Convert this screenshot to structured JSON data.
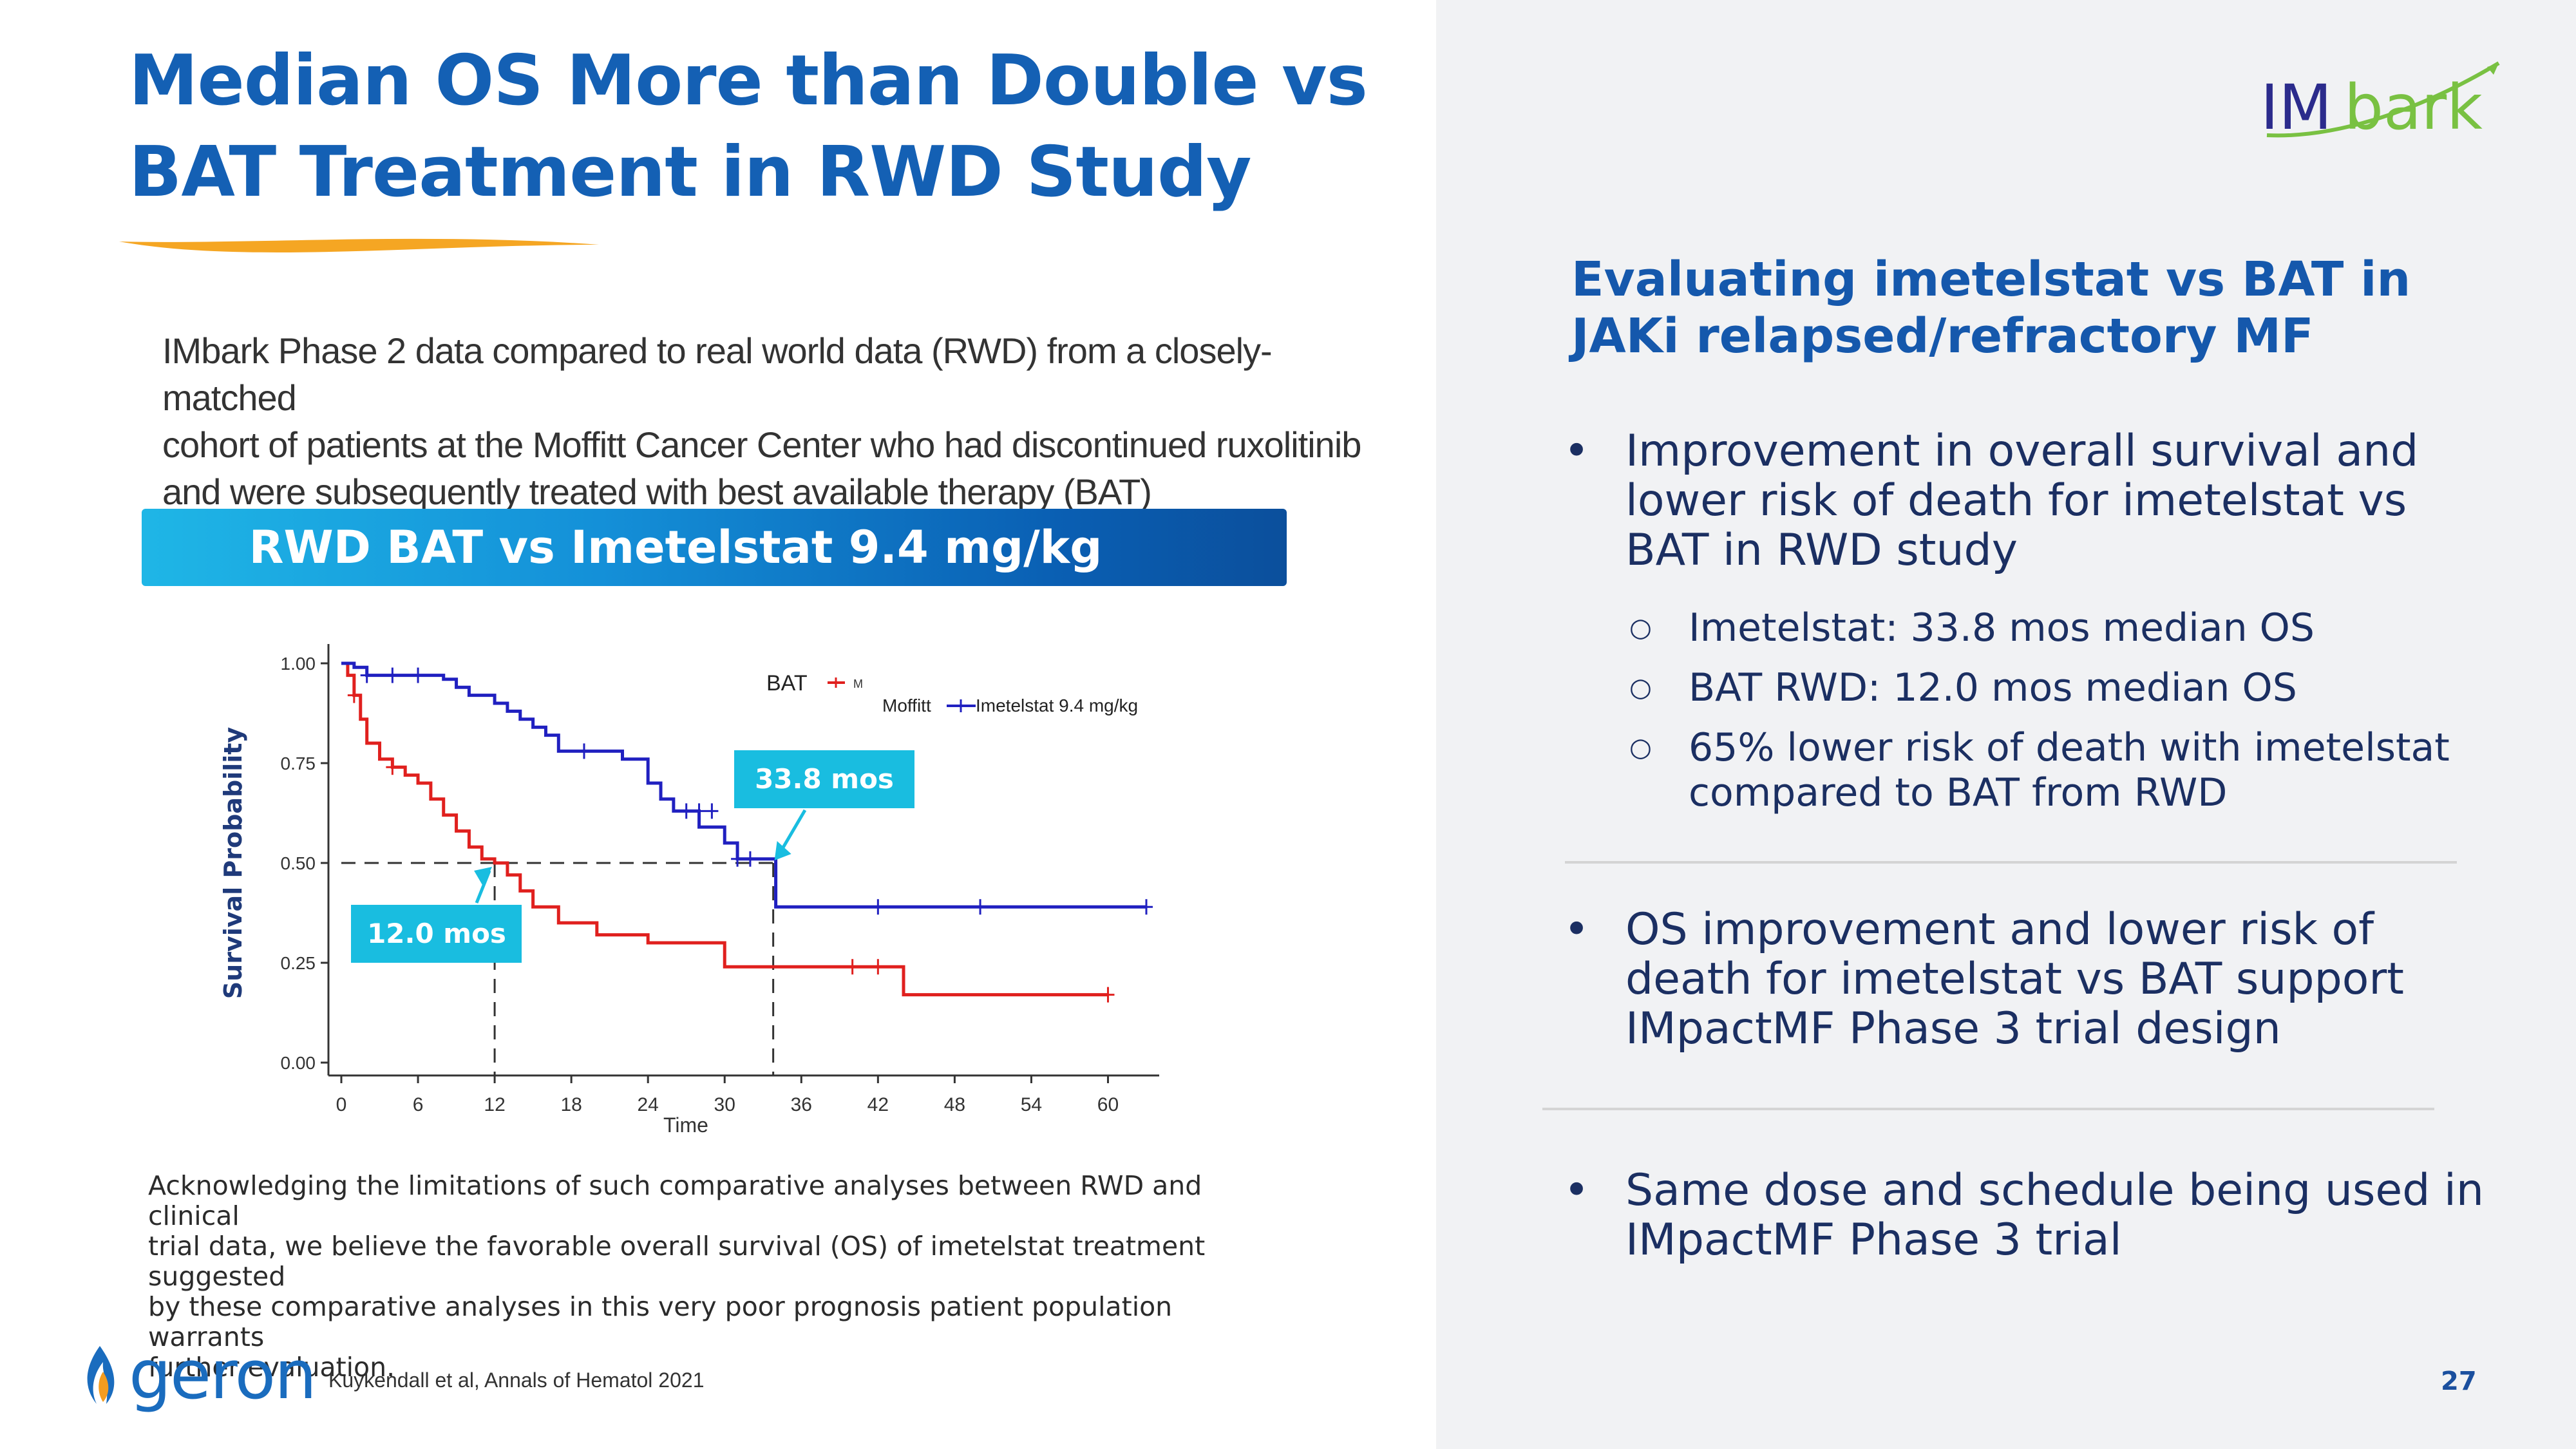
{
  "slide": {
    "title_line1": "Median OS More than Double vs",
    "title_line2": "BAT Treatment in RWD Study",
    "intro_line1": "IMbark Phase 2 data compared to real world data (RWD) from a closely-matched",
    "intro_line2": "cohort of patients at the Moffitt Cancer Center who had discontinued ruxolitinib",
    "intro_line3": "and were subsequently treated with best available therapy (BAT)",
    "banner": "RWD BAT vs Imetelstat 9.4 mg/kg",
    "footnote_line1": "Acknowledging the limitations of such comparative analyses between RWD and clinical",
    "footnote_line2": "trial data, we believe the favorable overall survival (OS) of imetelstat treatment suggested",
    "footnote_line3": "by these comparative analyses in this very poor prognosis patient population warrants",
    "footnote_line4": "further evaluation.",
    "company_logo_text": "geron",
    "citation": "Kuykendall et al, Annals of Hematol 2021",
    "page_number": "27",
    "imbark_logo_part1": "IM",
    "imbark_logo_part2": "bark"
  },
  "right_panel": {
    "heading_line1": "Evaluating imetelstat vs BAT in",
    "heading_line2": "JAKi relapsed/refractory MF",
    "bullet1_line1": "Improvement in overall survival and",
    "bullet1_line2": "lower risk of death for imetelstat vs",
    "bullet1_line3": "BAT in RWD study",
    "sub1": "Imetelstat: 33.8 mos median OS",
    "sub2": "BAT RWD: 12.0 mos median OS",
    "sub3_line1": "65% lower risk of death with imetelstat",
    "sub3_line2": "compared to BAT from RWD",
    "bullet2_line1": "OS improvement and lower risk of",
    "bullet2_line2": "death for imetelstat vs BAT support",
    "bullet2_line3": "IMpactMF Phase 3 trial design",
    "bullet3_line1": "Same dose and schedule being used in",
    "bullet3_line2": "IMpactMF Phase 3 trial",
    "bullet_symbol": "•",
    "sub_symbol": "○"
  },
  "colors": {
    "title_blue": "#1460b4",
    "bat_red": "#e0201e",
    "imetelstat_blue": "#2020c0",
    "callout_cyan": "#19bde0",
    "imbark_green": "#79c142"
  },
  "chart_data": {
    "type": "line",
    "xlabel": "Time",
    "ylabel": "Survival Probability",
    "xlim": [
      0,
      63
    ],
    "ylim": [
      0,
      1
    ],
    "x_ticks": [
      "0",
      "6",
      "12",
      "18",
      "24",
      "30",
      "36",
      "42",
      "48",
      "54",
      "60"
    ],
    "y_ticks": [
      "0.00",
      "0.25",
      "0.50",
      "0.75",
      "1.00"
    ],
    "legend_bat": "BAT",
    "legend_bat_cut": "M",
    "legend_moffitt": "Moffitt",
    "legend_imetelstat": "Imetelstat 9.4 mg/kg",
    "callout_bat": "12.0 mos",
    "callout_imetelstat": "33.8 mos",
    "median_bat": 12.0,
    "median_imetelstat": 33.8,
    "series": [
      {
        "name": "BAT Moffitt",
        "color": "#e0201e",
        "x": [
          0,
          0.5,
          1,
          1.5,
          2,
          3,
          4,
          5,
          6,
          7,
          8,
          9,
          10,
          11,
          12,
          13,
          14,
          15,
          17,
          20,
          24,
          30,
          42,
          44,
          60
        ],
        "y": [
          1.0,
          0.97,
          0.92,
          0.86,
          0.8,
          0.76,
          0.74,
          0.72,
          0.7,
          0.66,
          0.62,
          0.58,
          0.54,
          0.51,
          0.5,
          0.47,
          0.43,
          0.39,
          0.35,
          0.32,
          0.3,
          0.24,
          0.24,
          0.17,
          0.17
        ],
        "censor_x": [
          1,
          4,
          40,
          42,
          60
        ],
        "censor_y": [
          0.92,
          0.74,
          0.24,
          0.24,
          0.17
        ]
      },
      {
        "name": "Imetelstat 9.4 mg/kg",
        "color": "#2020c0",
        "x": [
          0,
          1,
          2,
          6,
          8,
          9,
          10,
          12,
          13,
          14,
          15,
          16,
          17,
          20,
          22,
          24,
          25,
          26,
          28,
          30,
          31,
          34,
          63
        ],
        "y": [
          1.0,
          0.99,
          0.97,
          0.97,
          0.96,
          0.94,
          0.92,
          0.9,
          0.88,
          0.86,
          0.84,
          0.82,
          0.78,
          0.78,
          0.76,
          0.7,
          0.66,
          0.63,
          0.59,
          0.55,
          0.51,
          0.39,
          0.39
        ],
        "censor_x": [
          2,
          4,
          6,
          19,
          27,
          28,
          29,
          31,
          32,
          42,
          50,
          63
        ],
        "censor_y": [
          0.97,
          0.97,
          0.97,
          0.78,
          0.63,
          0.63,
          0.63,
          0.51,
          0.51,
          0.39,
          0.39,
          0.39
        ]
      }
    ]
  }
}
